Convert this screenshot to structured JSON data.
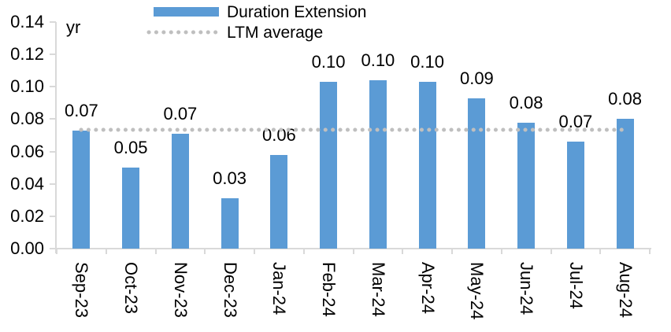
{
  "chart": {
    "colors": {
      "bar": "#5B9BD5",
      "average_line": "#BFBFBF",
      "axis": "#D9D9D9",
      "text": "#000000"
    }
  },
  "chart_data": {
    "type": "bar",
    "title": "",
    "ylabel": "yr",
    "xlabel": "",
    "ylim": [
      0,
      0.14
    ],
    "ytick_step": 0.02,
    "yticks": [
      "0.14",
      "0.12",
      "0.10",
      "0.08",
      "0.06",
      "0.04",
      "0.02",
      "0.00"
    ],
    "grid": false,
    "legend_position": "top-center",
    "x_label_rotation": 90,
    "categories": [
      "Sep-23",
      "Oct-23",
      "Nov-23",
      "Dec-23",
      "Jan-24",
      "Feb-24",
      "Mar-24",
      "Apr-24",
      "May-24",
      "Jun-24",
      "Jul-24",
      "Aug-24"
    ],
    "series": [
      {
        "name": "Duration Extension",
        "type": "bar",
        "values": [
          0.073,
          0.05,
          0.071,
          0.031,
          0.058,
          0.103,
          0.104,
          0.103,
          0.093,
          0.078,
          0.066,
          0.08
        ],
        "data_labels": [
          "0.07",
          "0.05",
          "0.07",
          "0.03",
          "0.06",
          "0.10",
          "0.10",
          "0.10",
          "0.09",
          "0.08",
          "0.07",
          "0.08"
        ]
      },
      {
        "name": "LTM average",
        "type": "dotted-line",
        "value": 0.0735
      }
    ]
  }
}
